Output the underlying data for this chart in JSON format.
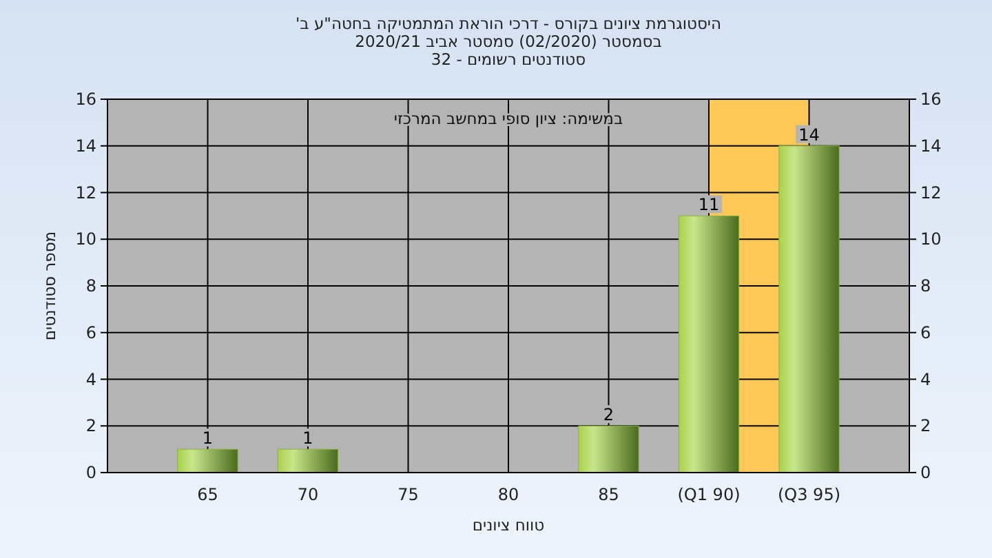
{
  "chart_data": {
    "type": "bar",
    "title": "'היסטוגרמת ציונים בקורס - דרכי הוראת המתמטיקה בחטה\"ע ב",
    "subtitle": [
      "בסמסטר  (02/2020)  סמסטר אביב 2020/21",
      "סטודנטים רשומים - 32"
    ],
    "xlabel": "טווח ציונים",
    "ylabel": "מספר סטודנטים",
    "annotations": [
      "במשימה: ציון סופי במחשב המרכזי"
    ],
    "categories": [
      "65",
      "70",
      "75",
      "80",
      "85",
      "(Q1 90)",
      "(Q3 95)"
    ],
    "values": [
      1,
      1,
      0,
      0,
      2,
      11,
      14
    ],
    "value_labels": [
      "1",
      "1",
      null,
      null,
      "2",
      "11",
      "14"
    ],
    "color": "#8db33e",
    "bands": [
      {
        "axis": "x",
        "from": "(Q1 90)",
        "to": "(Q3 95)",
        "color": "#ffc857"
      }
    ],
    "ylim": [
      0,
      16
    ],
    "yticks": [
      0,
      2,
      4,
      6,
      8,
      10,
      12,
      14,
      16
    ],
    "y2lim": [
      0,
      16
    ],
    "y2ticks": [
      0,
      2,
      4,
      6,
      8,
      10,
      12,
      14,
      16
    ],
    "grid": true
  }
}
